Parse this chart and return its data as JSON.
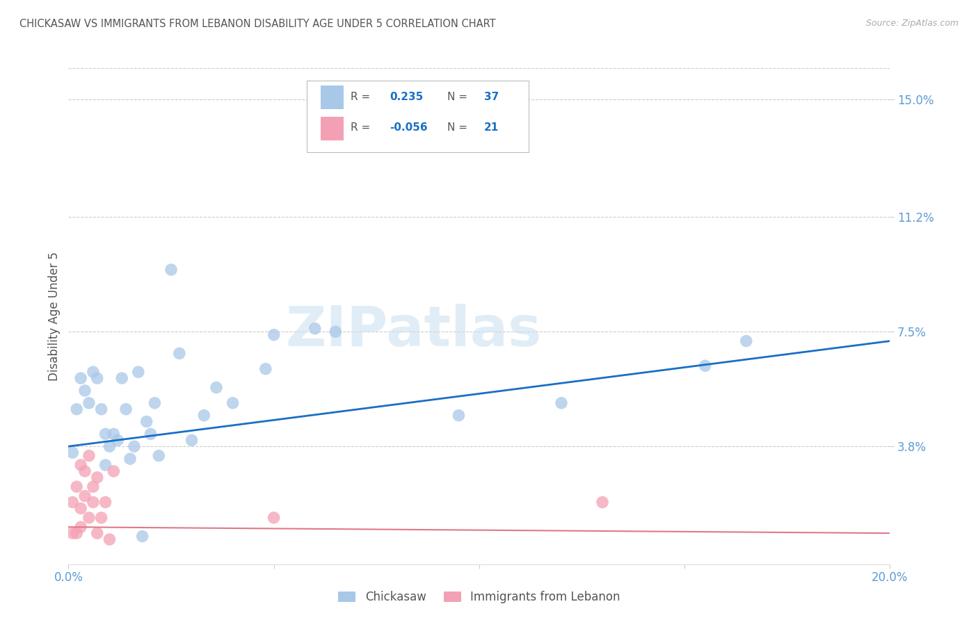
{
  "title": "CHICKASAW VS IMMIGRANTS FROM LEBANON DISABILITY AGE UNDER 5 CORRELATION CHART",
  "source": "Source: ZipAtlas.com",
  "ylabel": "Disability Age Under 5",
  "xlim": [
    0.0,
    0.2
  ],
  "ylim": [
    0.0,
    0.16
  ],
  "xticks": [
    0.0,
    0.05,
    0.1,
    0.15,
    0.2
  ],
  "xticklabels": [
    "0.0%",
    "",
    "",
    "",
    "20.0%"
  ],
  "ytick_positions": [
    0.038,
    0.075,
    0.112,
    0.15
  ],
  "ytick_labels": [
    "3.8%",
    "7.5%",
    "11.2%",
    "15.0%"
  ],
  "chickasaw_x": [
    0.001,
    0.002,
    0.003,
    0.004,
    0.005,
    0.006,
    0.007,
    0.008,
    0.009,
    0.01,
    0.011,
    0.012,
    0.013,
    0.014,
    0.015,
    0.016,
    0.017,
    0.018,
    0.019,
    0.02,
    0.021,
    0.022,
    0.025,
    0.027,
    0.03,
    0.033,
    0.036,
    0.04,
    0.048,
    0.05,
    0.06,
    0.065,
    0.095,
    0.12,
    0.155,
    0.165,
    0.009
  ],
  "chickasaw_y": [
    0.036,
    0.05,
    0.06,
    0.056,
    0.052,
    0.062,
    0.06,
    0.05,
    0.042,
    0.038,
    0.042,
    0.04,
    0.06,
    0.05,
    0.034,
    0.038,
    0.062,
    0.009,
    0.046,
    0.042,
    0.052,
    0.035,
    0.095,
    0.068,
    0.04,
    0.048,
    0.057,
    0.052,
    0.063,
    0.074,
    0.076,
    0.075,
    0.048,
    0.052,
    0.064,
    0.072,
    0.032
  ],
  "lebanon_x": [
    0.001,
    0.001,
    0.002,
    0.002,
    0.003,
    0.003,
    0.003,
    0.004,
    0.004,
    0.005,
    0.005,
    0.006,
    0.006,
    0.007,
    0.007,
    0.008,
    0.009,
    0.01,
    0.011,
    0.05,
    0.13
  ],
  "lebanon_y": [
    0.01,
    0.02,
    0.01,
    0.025,
    0.012,
    0.018,
    0.032,
    0.022,
    0.03,
    0.015,
    0.035,
    0.02,
    0.025,
    0.01,
    0.028,
    0.015,
    0.02,
    0.008,
    0.03,
    0.015,
    0.02
  ],
  "blue_line_x0": 0.0,
  "blue_line_y0": 0.038,
  "blue_line_x1": 0.2,
  "blue_line_y1": 0.072,
  "pink_line_x0": 0.0,
  "pink_line_y0": 0.012,
  "pink_line_x1": 0.2,
  "pink_line_y1": 0.01,
  "blue_line_color": "#1a6fc4",
  "pink_line_color": "#e07888",
  "scatter_blue": "#a8c8e8",
  "scatter_pink": "#f4a0b4",
  "watermark_text": "ZIPatlas",
  "watermark_color": "#c8dff0",
  "bg_color": "#ffffff",
  "grid_color": "#cccccc",
  "tick_label_color": "#5b9bd5",
  "title_color": "#555555",
  "ylabel_color": "#555555",
  "source_color": "#aaaaaa",
  "legend_label_color": "#555555",
  "legend_value_color": "#1a6fc4"
}
